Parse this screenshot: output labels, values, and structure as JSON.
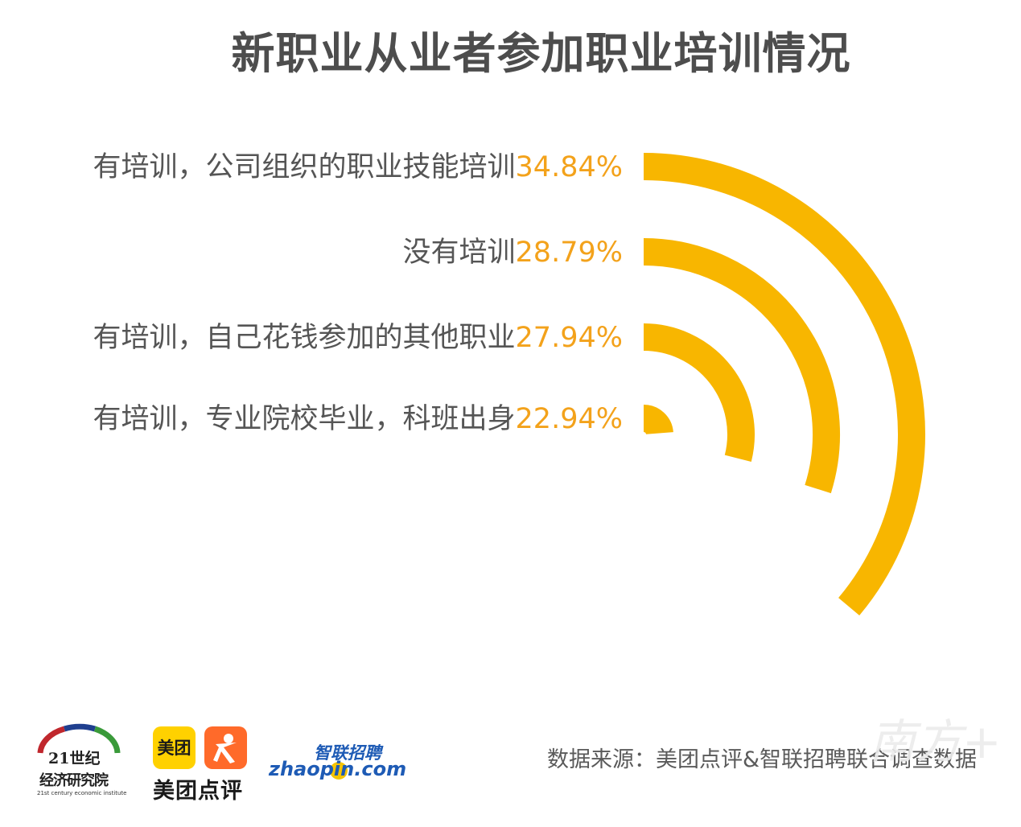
{
  "title": "新职业从业者参加职业培训情况",
  "chart_data": {
    "type": "radial-bar",
    "series": [
      {
        "label": "有培训，公司组织的职业技能培训",
        "value": 34.84,
        "value_label": "34.84%"
      },
      {
        "label": "没有培训",
        "value": 28.79,
        "value_label": "28.79%"
      },
      {
        "label": "有培训，自己花钱参加的其他职业",
        "value": 27.94,
        "value_label": "27.94%"
      },
      {
        "label": "有培训，专业院校毕业，科班出身",
        "value": 22.94,
        "value_label": "22.94%"
      }
    ],
    "colors": {
      "bar": "#f8b600",
      "value_text": "#f3a21b",
      "label_text": "#555555"
    }
  },
  "source": "数据来源：美团点评&智联招聘联合调查数据",
  "logos": {
    "institute": {
      "line1": "21世纪",
      "line2": "经济研究院",
      "line3": "21st century economic institute"
    },
    "meituan": {
      "box1": "美团",
      "name": "美团点评"
    },
    "zhaopin": {
      "cn": "智联招聘",
      "en": "zhaopin.com"
    }
  },
  "watermark": "南方+"
}
